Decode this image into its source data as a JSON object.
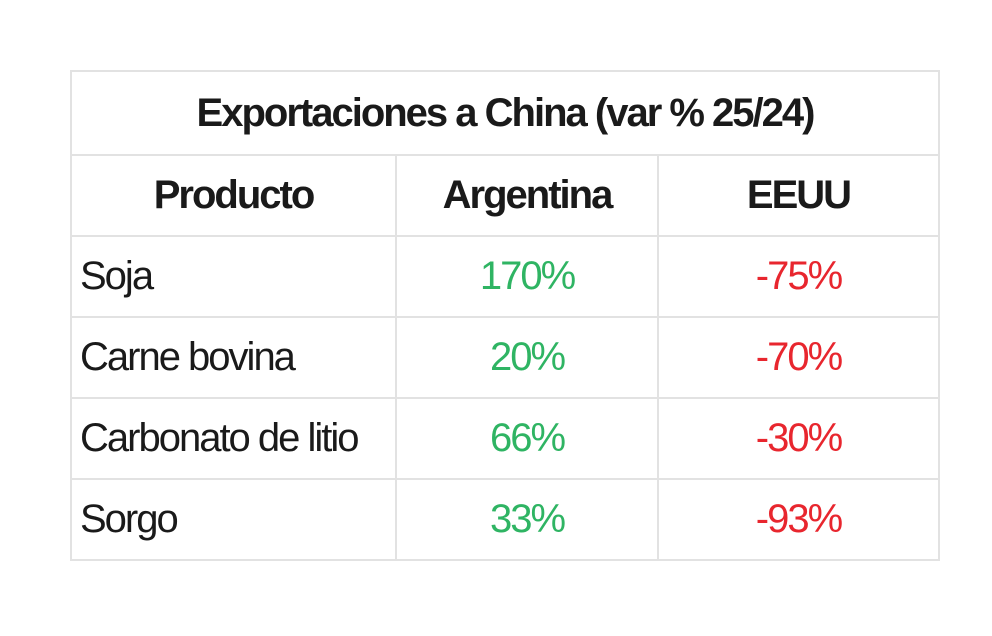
{
  "table": {
    "title": "Exportaciones a China (var % 25/24)",
    "headers": [
      "Producto",
      "Argentina",
      "EEUU"
    ],
    "rows": [
      [
        "Soja",
        "170%",
        "-75%"
      ],
      [
        "Carne bovina",
        "20%",
        "-70%"
      ],
      [
        "Carbonato de litio",
        "66%",
        "-30%"
      ],
      [
        "Sorgo",
        "33%",
        "-93%"
      ]
    ]
  }
}
